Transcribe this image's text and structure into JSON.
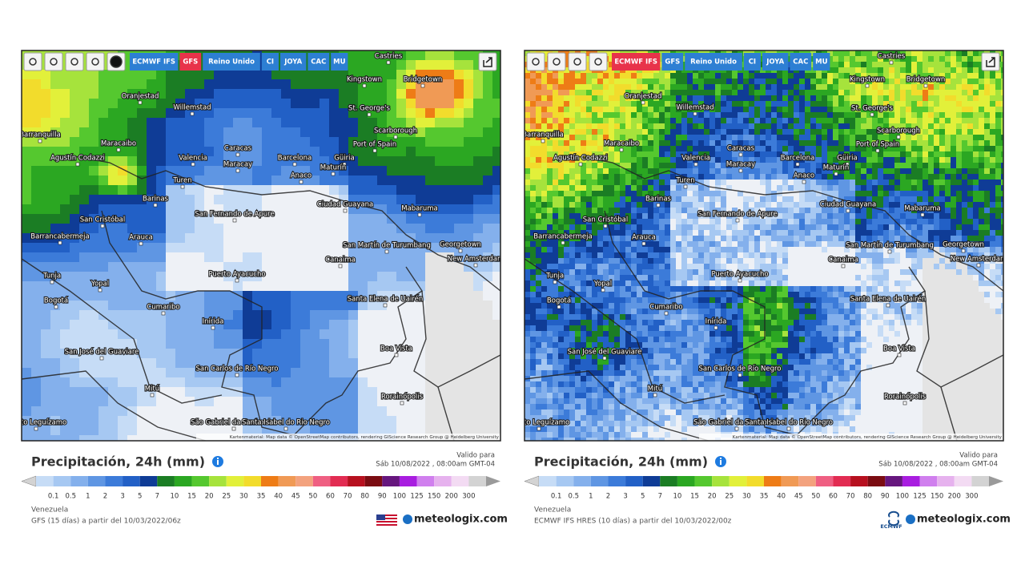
{
  "panels": [
    {
      "toolbar": [
        {
          "label": "ECMWF IFS",
          "color": "#2d7fd3"
        },
        {
          "label": "GFS",
          "color": "#e8334a"
        },
        {
          "label": "Reino Unido",
          "color": "#2d7fd3"
        },
        {
          "label": "CI",
          "color": "#2d7fd3"
        },
        {
          "label": "JOYA",
          "color": "#2d7fd3"
        },
        {
          "label": "CAC",
          "color": "#2d7fd3"
        },
        {
          "label": "MU",
          "color": "#2d7fd3"
        }
      ],
      "attribution": "Kartenmaterial: Map data © OpenStreetMap contributors, rendering GIScience Research Group @ Heidelberg University",
      "title": "Precipitación, 24h (mm)",
      "valid_label": "Valido para",
      "valid_date": "Sáb 10/08/2022 , 08:00am GMT-04",
      "region": "Venezuela",
      "source": "GFS (15 días) a partir del 10/03/2022/06z",
      "brand": "meteologix.com"
    },
    {
      "toolbar": [
        {
          "label": "ECMWF IFS",
          "color": "#e8334a"
        },
        {
          "label": "GFS",
          "color": "#2d7fd3"
        },
        {
          "label": "Reino Unido",
          "color": "#2d7fd3"
        },
        {
          "label": "CI",
          "color": "#2d7fd3"
        },
        {
          "label": "JOYA",
          "color": "#2d7fd3"
        },
        {
          "label": "CAC",
          "color": "#2d7fd3"
        },
        {
          "label": "MU",
          "color": "#2d7fd3"
        }
      ],
      "attribution": "Kartenmaterial: Map data © OpenStreetMap contributors, rendering GIScience Research Group @ Heidelberg University",
      "title": "Precipitación, 24h (mm)",
      "valid_label": "Valido para",
      "valid_date": "Sáb 10/08/2022 , 08:00am GMT-04",
      "region": "Venezuela",
      "source": "ECMWF IFS HRES (10 días) a partir del 10/03/2022/00z",
      "brand": "meteologix.com",
      "badge": "ECMWF"
    }
  ],
  "cities": [
    "Castries",
    "Kingstown",
    "Bridgetown",
    "Oranjestad",
    "Willemstad",
    "St. George's",
    "Scarborough",
    "Barranquilla",
    "Maracaibo",
    "Caracas",
    "Port of Spain",
    "Agustín Codazzi",
    "Valencia",
    "Barcelona",
    "Güiria",
    "Maracay",
    "Maturín",
    "Anaco",
    "Turen",
    "Barinas",
    "San Fernando de Apure",
    "Ciudad Guayana",
    "Mabaruma",
    "San Cristóbal",
    "Arauca",
    "Barrancabermeja",
    "San Martín de Turumbang",
    "Georgetown",
    "New Amsterdam",
    "Canaima",
    "Tunja",
    "Yopal",
    "Puerto Ayacucho",
    "Bogotá",
    "Cumaribo",
    "Santa Elena de Uairén",
    "Inírida",
    "Boa Vista",
    "San José del Guaviare",
    "San Carlos de Río Negro",
    "Mitú",
    "Rorainópolis",
    "São Gabriel da Cachoeira",
    "Santa Isabel do Rio Negro",
    "Puerto Leguízamo"
  ],
  "scale": {
    "labels": [
      0.1,
      0.5,
      1,
      2,
      3,
      5,
      7,
      10,
      15,
      20,
      25,
      30,
      35,
      40,
      45,
      50,
      60,
      70,
      80,
      90,
      100,
      125,
      150,
      200,
      300
    ],
    "colors": [
      "#c6dcf6",
      "#a6c8f2",
      "#84b0ec",
      "#5f96e3",
      "#3c7bd9",
      "#2260c6",
      "#0f3c96",
      "#1b7d24",
      "#2ba722",
      "#55c82f",
      "#a6e33c",
      "#e2f03a",
      "#f2dc2c",
      "#ee7c16",
      "#f09a55",
      "#f3a27e",
      "#ef5f82",
      "#e22c52",
      "#b7101f",
      "#7b0c12",
      "#66167e",
      "#a81de0",
      "#d07fee",
      "#e6b2ee",
      "#f3dbf3",
      "#d3d3d3"
    ]
  }
}
